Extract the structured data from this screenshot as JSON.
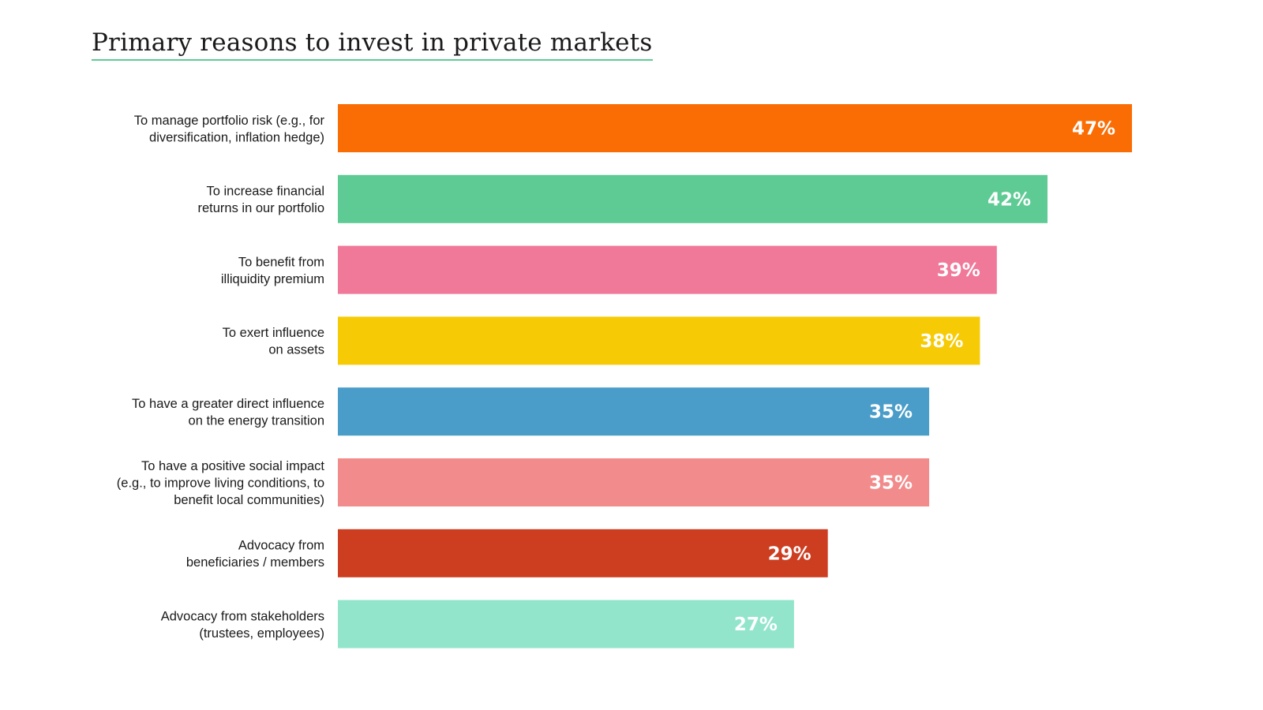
{
  "chart_data": {
    "type": "bar",
    "orientation": "horizontal",
    "title": "Primary reasons to invest in private markets",
    "categories": [
      [
        "To manage portfolio risk (e.g., for",
        "diversification, inflation hedge)"
      ],
      [
        "To increase financial",
        "returns in our portfolio"
      ],
      [
        "To benefit from",
        "illiquidity premium"
      ],
      [
        "To exert influence",
        "on assets"
      ],
      [
        "To have a greater direct influence",
        "on the energy transition"
      ],
      [
        "To have a positive social impact",
        "(e.g., to improve living conditions, to",
        "benefit local communities)"
      ],
      [
        "Advocacy from",
        "beneficiaries / members"
      ],
      [
        "Advocacy from stakeholders",
        "(trustees, employees)"
      ]
    ],
    "values": [
      47,
      42,
      39,
      38,
      35,
      35,
      29,
      27
    ],
    "value_labels": [
      "47%",
      "42%",
      "39%",
      "38%",
      "35%",
      "35%",
      "29%",
      "27%"
    ],
    "colors": [
      "#f96d04",
      "#5ecb94",
      "#f07899",
      "#f6cb05",
      "#499dc8",
      "#f28b8b",
      "#cd3e21",
      "#92e5cb"
    ],
    "xlim": [
      0,
      47
    ],
    "grid": false,
    "legend": "none"
  }
}
